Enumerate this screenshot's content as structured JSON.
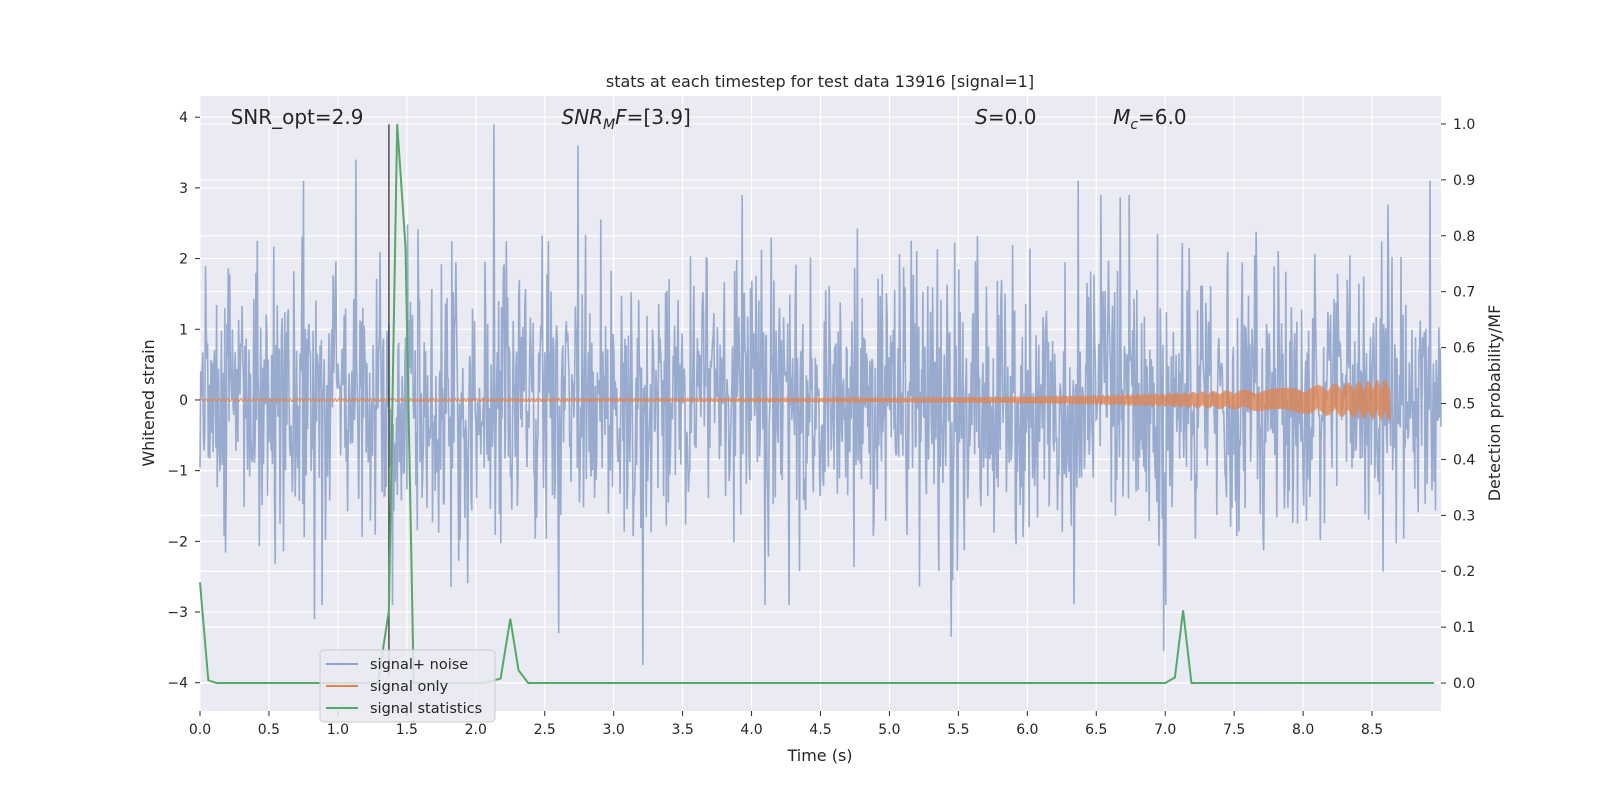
{
  "chart_data": {
    "type": "line",
    "title": "stats at each timestep for test data 13916 [signal=1]",
    "xlabel": "Time (s)",
    "ylabel_left": "Whitened strain",
    "ylabel_right": "Detection probability/MF",
    "xlim": [
      0.0,
      9.0
    ],
    "ylim_left": [
      -4.4,
      4.3
    ],
    "ylim_right": [
      -0.05,
      1.05
    ],
    "x_ticks": [
      0.0,
      0.5,
      1.0,
      1.5,
      2.0,
      2.5,
      3.0,
      3.5,
      4.0,
      4.5,
      5.0,
      5.5,
      6.0,
      6.5,
      7.0,
      7.5,
      8.0,
      8.5
    ],
    "x_tick_labels": [
      "0.0",
      "0.5",
      "1.0",
      "1.5",
      "2.0",
      "2.5",
      "3.0",
      "3.5",
      "4.0",
      "4.5",
      "5.0",
      "5.5",
      "6.0",
      "6.5",
      "7.0",
      "7.5",
      "8.0",
      "8.5"
    ],
    "y_ticks_left": [
      4,
      3,
      2,
      1,
      0,
      -1,
      -2,
      -3,
      -4
    ],
    "y_tick_labels_left": [
      "4",
      "3",
      "2",
      "1",
      "0",
      "−1",
      "−2",
      "−3",
      "−4"
    ],
    "y_ticks_right": [
      1.0,
      0.9,
      0.8,
      0.7,
      0.6,
      0.5,
      0.4,
      0.3,
      0.2,
      0.1,
      0.0
    ],
    "y_tick_labels_right": [
      "1.0",
      "0.9",
      "0.8",
      "0.7",
      "0.6",
      "0.5",
      "0.4",
      "0.3",
      "0.2",
      "0.1",
      "0.0"
    ],
    "grid": true,
    "legend_position": "lower-left",
    "annotations": [
      {
        "text": "SNR_opt=2.9",
        "x": 0.2,
        "y": 4.0
      },
      {
        "text": "SNR_MF=[3.9]",
        "x": 2.6,
        "y": 4.0
      },
      {
        "text": "S=0.0",
        "x": 5.6,
        "y": 4.0
      },
      {
        "text": "M_c=6.0",
        "x": 6.6,
        "y": 4.0
      }
    ],
    "vertical_marker_x": 1.37,
    "series": [
      {
        "name": "signal+ noise",
        "axis": "left",
        "color": "#8fa4cb",
        "noise": {
          "t_start": 0.0,
          "t_end": 9.0,
          "samples": 1800,
          "std": 1.0
        },
        "peaks": [
          {
            "x": 2.13,
            "y": 3.9
          },
          {
            "x": 1.13,
            "y": 3.4
          },
          {
            "x": 2.74,
            "y": 3.6
          },
          {
            "x": 6.37,
            "y": 3.1
          },
          {
            "x": 8.92,
            "y": 3.1
          },
          {
            "x": 0.75,
            "y": 3.1
          },
          {
            "x": 3.21,
            "y": -3.75
          },
          {
            "x": 5.45,
            "y": -3.35
          },
          {
            "x": 6.99,
            "y": -3.55
          },
          {
            "x": 2.6,
            "y": -3.3
          },
          {
            "x": 0.83,
            "y": -3.1
          }
        ]
      },
      {
        "name": "signal only",
        "axis": "left",
        "color": "#dd8452",
        "chirp": {
          "t_start": 0.0,
          "t_end": 8.63,
          "amp_start": 0.02,
          "amp_end": 0.3
        }
      },
      {
        "name": "signal statistics",
        "axis": "right",
        "color": "#55a868",
        "x": [
          0.0,
          0.06,
          0.12,
          1.29,
          1.37,
          1.43,
          1.49,
          1.55,
          1.62,
          2.06,
          2.18,
          2.25,
          2.31,
          2.38,
          2.46,
          7.0,
          7.07,
          7.13,
          7.19,
          7.25,
          8.95
        ],
        "values": [
          0.18,
          0.005,
          0.0,
          0.0,
          0.13,
          1.0,
          0.78,
          0.0,
          0.0,
          0.0,
          0.008,
          0.115,
          0.023,
          0.0,
          0.0,
          0.0,
          0.01,
          0.13,
          0.0,
          0.0,
          0.0
        ]
      }
    ]
  }
}
